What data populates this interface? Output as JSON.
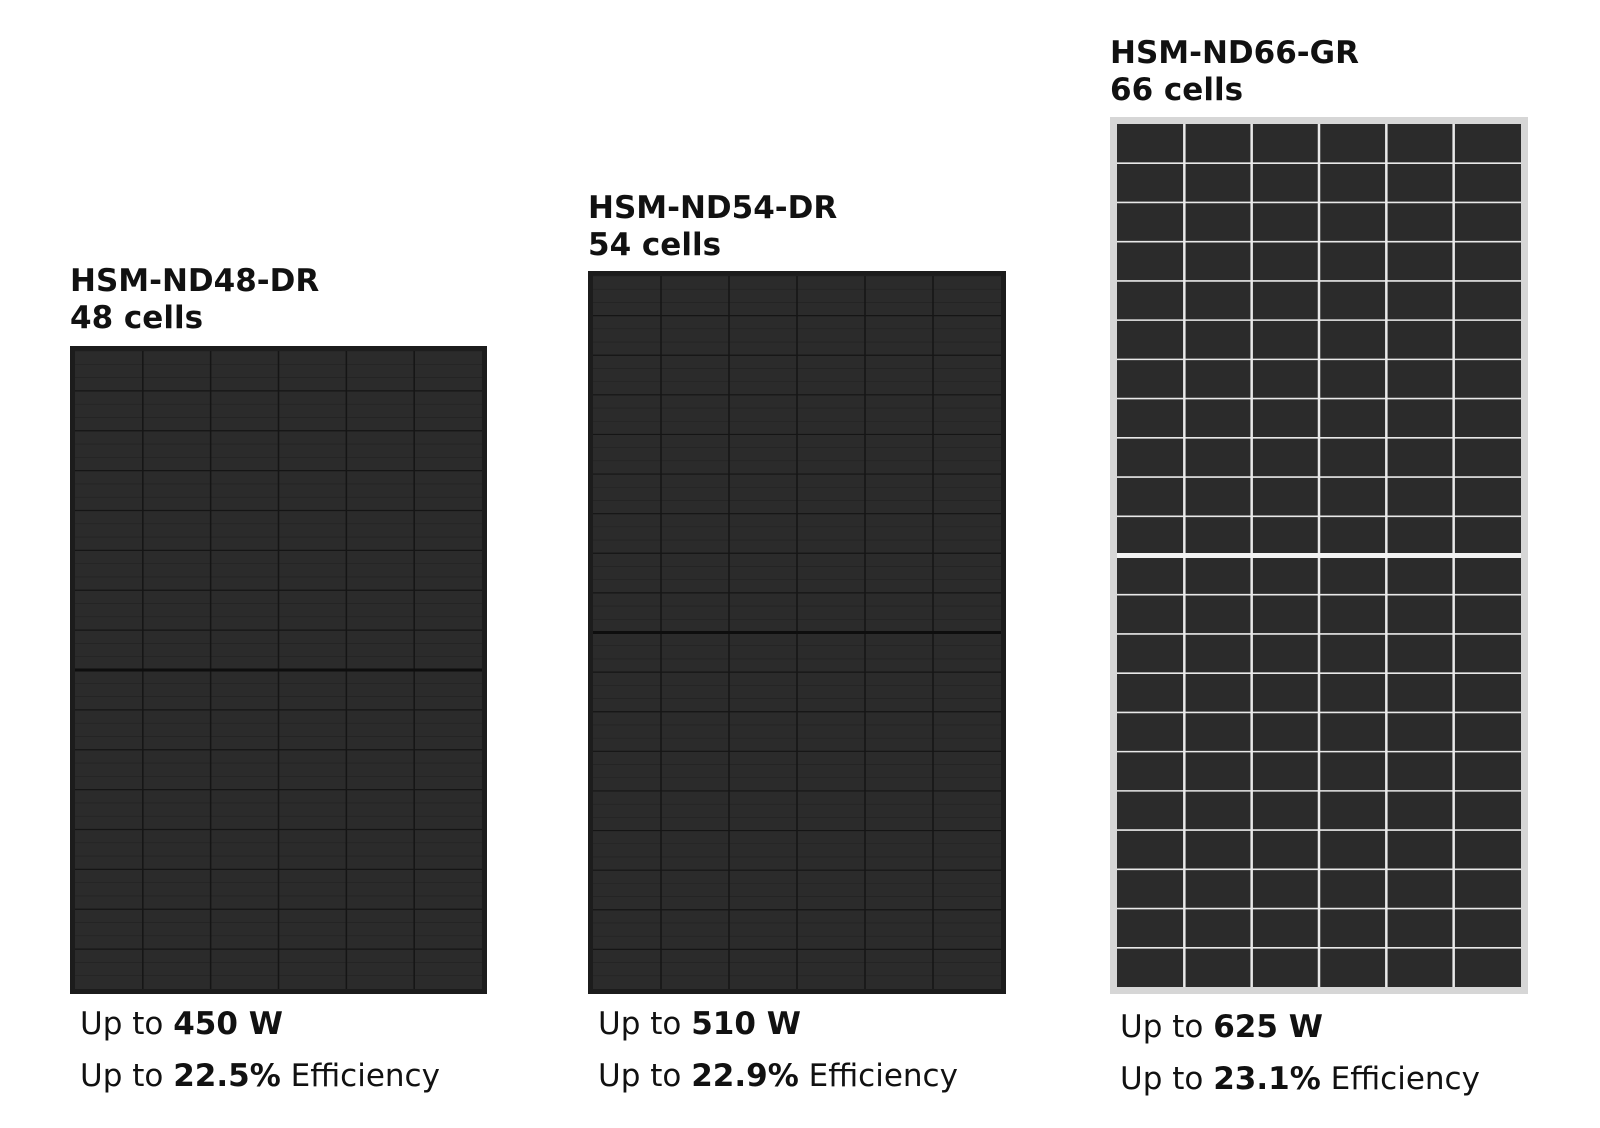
{
  "products": [
    {
      "model": "HSM-ND48-DR",
      "cells_label": "48 cells",
      "power_prefix": "Up to",
      "power_value": "450 W",
      "efficiency_prefix": "Up to",
      "efficiency_value": "22.5%",
      "efficiency_suffix": "Efficiency",
      "panel_style": "all-black",
      "grid_cols": 6,
      "grid_rows": 16
    },
    {
      "model": "HSM-ND54-DR",
      "cells_label": "54 cells",
      "power_prefix": "Up to",
      "power_value": "510 W",
      "efficiency_prefix": "Up to",
      "efficiency_value": "22.9%",
      "efficiency_suffix": "Efficiency",
      "panel_style": "all-black",
      "grid_cols": 6,
      "grid_rows": 18
    },
    {
      "model": "HSM-ND66-GR",
      "cells_label": "66 cells",
      "power_prefix": "Up to",
      "power_value": "625 W",
      "efficiency_prefix": "Up to",
      "efficiency_value": "23.1%",
      "efficiency_suffix": "Efficiency",
      "panel_style": "silver-frame",
      "grid_cols": 6,
      "grid_rows": 22
    }
  ],
  "colors": {
    "cell_dark": "#2b2b2b",
    "frame_black": "#1c1c1c",
    "frame_silver": "#d6d6d6",
    "gap_white": "#e9e9e9"
  }
}
